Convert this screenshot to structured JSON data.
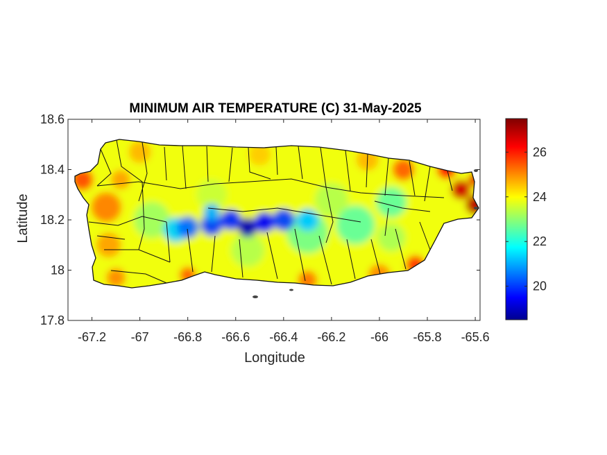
{
  "chart_data": {
    "type": "heatmap",
    "title": "MINIMUM AIR TEMPERATURE (C) 31-May-2025",
    "xlabel": "Longitude",
    "ylabel": "Latitude",
    "xlim": [
      -67.3,
      -65.58
    ],
    "ylim": [
      17.8,
      18.6
    ],
    "xticks": [
      -67.2,
      -67,
      -66.8,
      -66.6,
      -66.4,
      -66.2,
      -66,
      -65.8,
      -65.6
    ],
    "xtick_labels": [
      "-67.2",
      "-67",
      "-66.8",
      "-66.6",
      "-66.4",
      "-66.2",
      "-66",
      "-65.8",
      "-65.6"
    ],
    "yticks": [
      17.8,
      18,
      18.2,
      18.4,
      18.6
    ],
    "ytick_labels": [
      "17.8",
      "18",
      "18.2",
      "18.4",
      "18.6"
    ],
    "colorbar": {
      "colormap": "jet",
      "clim": [
        18.5,
        27.5
      ],
      "ticks": [
        20,
        22,
        24,
        26
      ],
      "tick_labels": [
        "20",
        "22",
        "24",
        "26"
      ]
    },
    "grid": false,
    "region": "Puerto Rico",
    "field_summary": {
      "coldest_zone": {
        "lon_range": [
          -66.85,
          -66.3
        ],
        "lat": 18.17,
        "min_value": 19
      },
      "warmest_zone": {
        "lon_range": [
          -65.72,
          -65.6
        ],
        "lat_range": [
          18.15,
          18.4
        ],
        "max_value": 27
      },
      "typical_value": 24
    }
  }
}
